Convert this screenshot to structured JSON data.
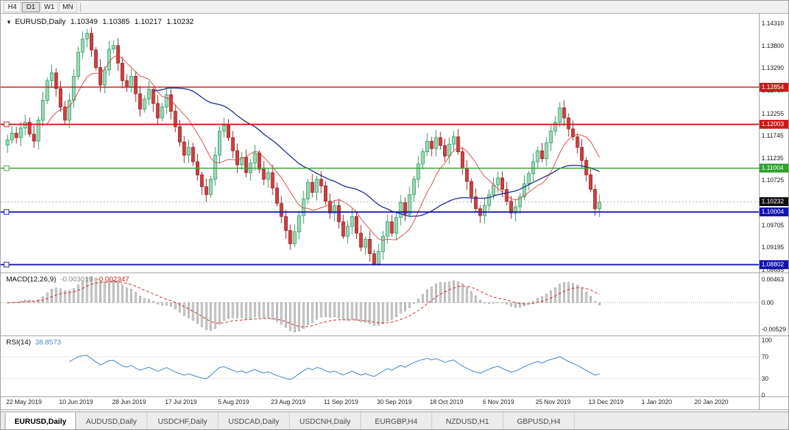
{
  "toolbar": {
    "timeframes": [
      {
        "label": "H4",
        "active": false
      },
      {
        "label": "D1",
        "active": true
      },
      {
        "label": "W1",
        "active": false
      },
      {
        "label": "MN",
        "active": false
      }
    ]
  },
  "symbol_line": {
    "collapse_icon": "▼",
    "symbol": "EURUSD,Daily",
    "open": "1.10349",
    "high": "1.10385",
    "low": "1.10217",
    "close": "1.10232"
  },
  "chart_data": {
    "type": "candlestick",
    "symbol": "EURUSD",
    "timeframe": "Daily",
    "price_max": 1.1431,
    "price_min": 1.08685,
    "y_ticks": [
      "1.14310",
      "1.13800",
      "1.13290",
      "1.12780",
      "1.12255",
      "1.11745",
      "1.11235",
      "1.10725",
      "1.10215",
      "1.09705",
      "1.09195",
      "1.08685"
    ],
    "x_labels": [
      "22 May 2019",
      "10 Jun 2019",
      "28 Jun 2019",
      "17 Jul 2019",
      "5 Aug 2019",
      "23 Aug 2019",
      "11 Sep 2019",
      "30 Sep 2019",
      "18 Oct 2019",
      "6 Nov 2019",
      "25 Nov 2019",
      "13 Dec 2019",
      "1 Jan 2020",
      "20 Jan 2020"
    ],
    "closes": [
      1.1165,
      1.118,
      1.117,
      1.1192,
      1.1205,
      1.1178,
      1.1162,
      1.121,
      1.1255,
      1.13,
      1.1318,
      1.1282,
      1.124,
      1.121,
      1.1255,
      1.131,
      1.1365,
      1.1395,
      1.1408,
      1.137,
      1.133,
      1.129,
      1.1325,
      1.1372,
      1.138,
      1.134,
      1.13,
      1.1285,
      1.131,
      1.127,
      1.1235,
      1.1258,
      1.128,
      1.1248,
      1.1215,
      1.124,
      1.1268,
      1.123,
      1.1195,
      1.116,
      1.113,
      1.1148,
      1.1115,
      1.1085,
      1.1058,
      1.104,
      1.1075,
      1.113,
      1.1185,
      1.1198,
      1.117,
      1.114,
      1.1108,
      1.1125,
      1.109,
      1.1112,
      1.1135,
      1.1098,
      1.1075,
      1.109,
      1.1055,
      1.102,
      1.099,
      1.0958,
      1.0928,
      1.0955,
      1.0992,
      1.103,
      1.1068,
      1.1045,
      1.1075,
      1.106,
      1.1025,
      1.0998,
      1.1015,
      1.0978,
      1.0945,
      1.0968,
      1.099,
      1.0952,
      1.092,
      1.0938,
      1.0905,
      1.0882,
      1.091,
      1.0945,
      1.0978,
      1.0952,
      1.0988,
      1.1022,
      1.0995,
      1.104,
      1.1075,
      1.111,
      1.1138,
      1.1162,
      1.1145,
      1.117,
      1.1152,
      1.1128,
      1.1155,
      1.1172,
      1.1138,
      1.11,
      1.107,
      1.1035,
      1.1008,
      1.0992,
      1.1015,
      1.104,
      1.1062,
      1.1078,
      1.1052,
      1.1025,
      1.0998,
      1.1012,
      1.1035,
      1.1065,
      1.1088,
      1.1115,
      1.114,
      1.1122,
      1.1158,
      1.1185,
      1.1205,
      1.1238,
      1.1215,
      1.119,
      1.1172,
      1.1148,
      1.1118,
      1.1085,
      1.1052,
      1.1008,
      1.1023
    ],
    "horizontal_levels": [
      {
        "label": "1.12854",
        "value": 1.12854,
        "color": "#cc1a1a",
        "width": 1.5,
        "handle": false
      },
      {
        "label": "1.12003",
        "value": 1.12003,
        "color": "#cc1a1a",
        "width": 2,
        "handle": true
      },
      {
        "label": "1.11004",
        "value": 1.11004,
        "color": "#2fa32f",
        "width": 1.5,
        "handle": true
      },
      {
        "label": "1.10004",
        "value": 1.10004,
        "color": "#1414b4",
        "width": 2,
        "handle": true
      },
      {
        "label": "1.08802",
        "value": 1.08802,
        "color": "#1414b4",
        "width": 2,
        "handle": true
      }
    ],
    "current_price": {
      "label": "1.10232",
      "value": 1.10232,
      "badge_color": "#101010"
    },
    "indicators": {
      "ma_fast_period": 10,
      "ma_slow_period": 34,
      "macd": {
        "title": "MACD(12,26,9)",
        "main_value": "-0.003019",
        "signal_value": "-0.002347",
        "ticks": [
          {
            "label": "0.00463",
            "value": 0.00463
          },
          {
            "label": "0.00",
            "value": 0
          },
          {
            "label": "-0.00529",
            "value": -0.00529
          }
        ]
      },
      "rsi": {
        "title": "RSI(14)",
        "value": "38.8573",
        "levels": [
          70,
          30
        ],
        "ticks": [
          {
            "label": "100",
            "value": 100
          },
          {
            "label": "70",
            "value": 70
          },
          {
            "label": "30",
            "value": 30
          },
          {
            "label": "0",
            "value": 0
          }
        ]
      }
    }
  },
  "tabs": [
    {
      "label": "EURUSD,Daily",
      "active": true
    },
    {
      "label": "AUDUSD,Daily",
      "active": false
    },
    {
      "label": "USDCHF,Daily",
      "active": false
    },
    {
      "label": "USDCAD,Daily",
      "active": false
    },
    {
      "label": "USDCNH,Daily",
      "active": false
    },
    {
      "label": "EURGBP,H4",
      "active": false
    },
    {
      "label": "NZDUSD,H1",
      "active": false
    },
    {
      "label": "GBPUSD,H4",
      "active": false
    }
  ],
  "colors": {
    "up_fill": "#9fd8b5",
    "up_stroke": "#259a60",
    "down_fill": "#cf3f3f",
    "down_stroke": "#8f1f1f",
    "ma_fast": "#e04545",
    "ma_slow": "#20308f",
    "macd_hist_fill": "#c9c9c9",
    "macd_hist_stroke": "#8e8e8e",
    "macd_signal": "#cc2222",
    "rsi_line": "#4a86c8"
  }
}
